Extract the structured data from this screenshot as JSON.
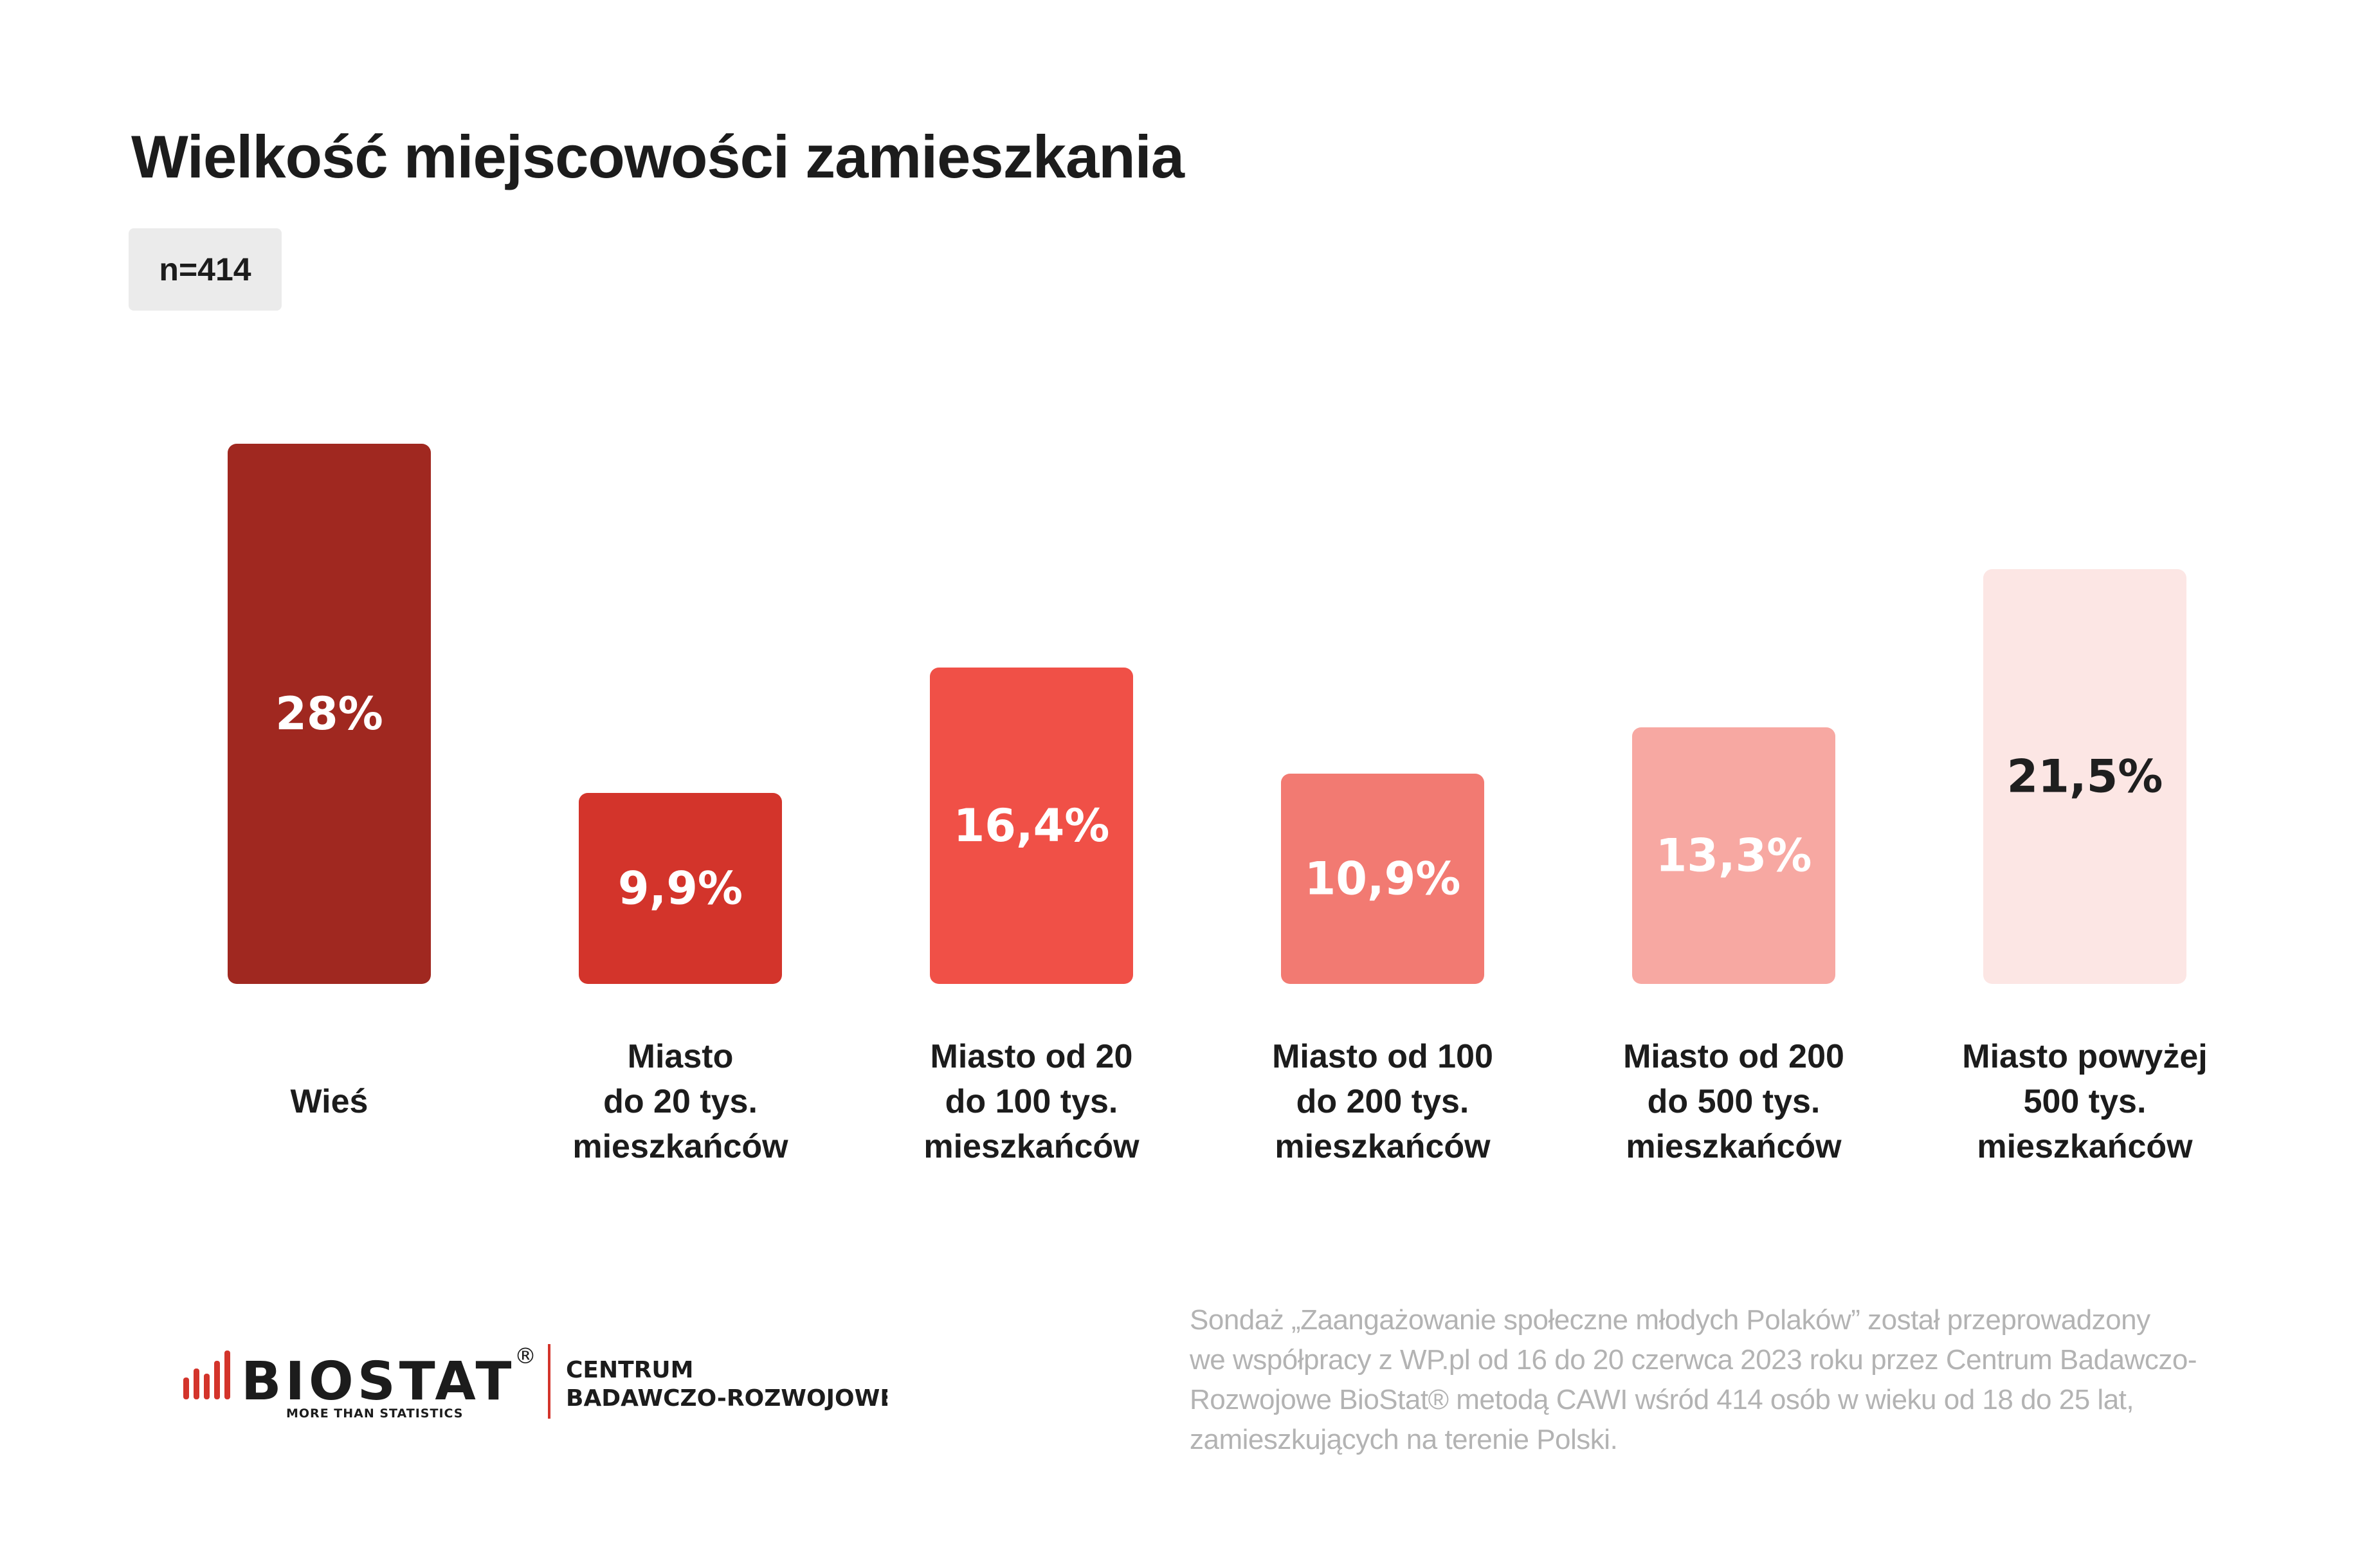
{
  "title": "Wielkość miejscowości zamieszkania",
  "sample": "n=414",
  "chart_data": {
    "type": "bar",
    "categories": [
      [
        "Wieś"
      ],
      [
        "Miasto",
        "do 20 tys.",
        "mieszkańców"
      ],
      [
        "Miasto od 20",
        "do 100 tys.",
        "mieszkańców"
      ],
      [
        "Miasto od 100",
        "do 200 tys.",
        "mieszkańców"
      ],
      [
        "Miasto od 200",
        "do 500 tys.",
        "mieszkańców"
      ],
      [
        "Miasto powyżej",
        "500 tys.",
        "mieszkańców"
      ]
    ],
    "values": [
      28,
      9.9,
      16.4,
      10.9,
      13.3,
      21.5
    ],
    "value_labels": [
      "28%",
      "9,9%",
      "16,4%",
      "10,9%",
      "13,3%",
      "21,5%"
    ],
    "colors": [
      "#a02820",
      "#d3342b",
      "#f05047",
      "#f27a72",
      "#f7a8a2",
      "#fce6e4"
    ],
    "label_colors": [
      "#ffffff",
      "#ffffff",
      "#ffffff",
      "#ffffff",
      "#ffffff",
      "#1f1f1f"
    ],
    "ylim": [
      0,
      28
    ],
    "grid": false,
    "legend": "none"
  },
  "footer": {
    "brand": "BIOSTAT",
    "registered": "®",
    "tagline": "MORE THAN STATISTICS",
    "division_line1": "CENTRUM",
    "division_line2": "BADAWCZO-ROZWOJOWE",
    "brand_color": "#d3342b",
    "note_lines": [
      "Sondaż  „Zaangażowanie społeczne młodych Polaków” został przeprowadzony",
      "we współpracy z WP.pl od 16 do 20 czerwca 2023 roku przez Centrum Badawczo-",
      "Rozwojowe BioStat® metodą CAWI wśród 414 osób w wieku od 18 do 25 lat,",
      "zamieszkujących na terenie Polski."
    ]
  }
}
